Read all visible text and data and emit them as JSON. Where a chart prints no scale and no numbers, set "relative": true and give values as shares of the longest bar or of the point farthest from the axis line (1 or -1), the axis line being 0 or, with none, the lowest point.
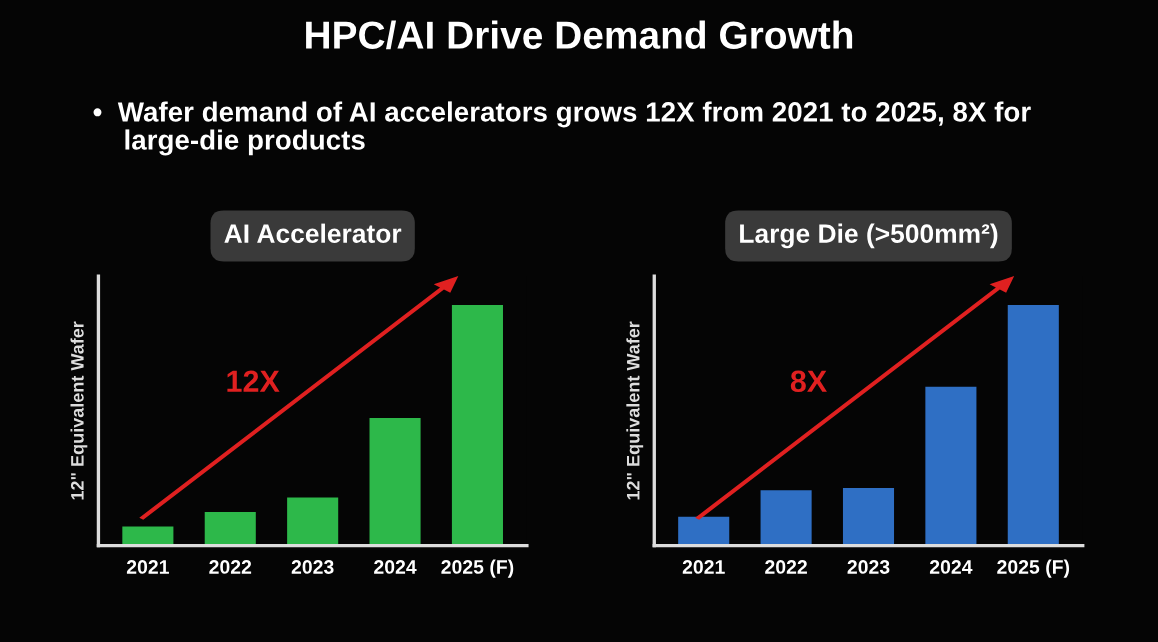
{
  "chart_data": [
    {
      "type": "bar",
      "title": "AI Accelerator",
      "ylabel": "12\" Equivalent Wafer",
      "relative": true,
      "annotations": [
        "HPC/AI Drive Demand Growth",
        "•  Wafer demand of AI accelerators grows 12X from 2021 to 2025, 8X for\n    large-die products",
        "12X"
      ],
      "categories": [
        "2021",
        "2022",
        "2023",
        "2024",
        "2025 (F)"
      ],
      "values": [
        0.08,
        0.14,
        0.2,
        0.53,
        1
      ],
      "color": "#2db84a"
    },
    {
      "type": "bar",
      "title": "Large Die (>500mm²)",
      "ylabel": "12\" Equivalent Wafer",
      "relative": true,
      "annotations": [
        "8X"
      ],
      "categories": [
        "2021",
        "2022",
        "2023",
        "2024",
        "2025 (F)"
      ],
      "values": [
        0.12,
        0.23,
        0.24,
        0.66,
        1
      ],
      "color": "#2f6fc4"
    }
  ]
}
